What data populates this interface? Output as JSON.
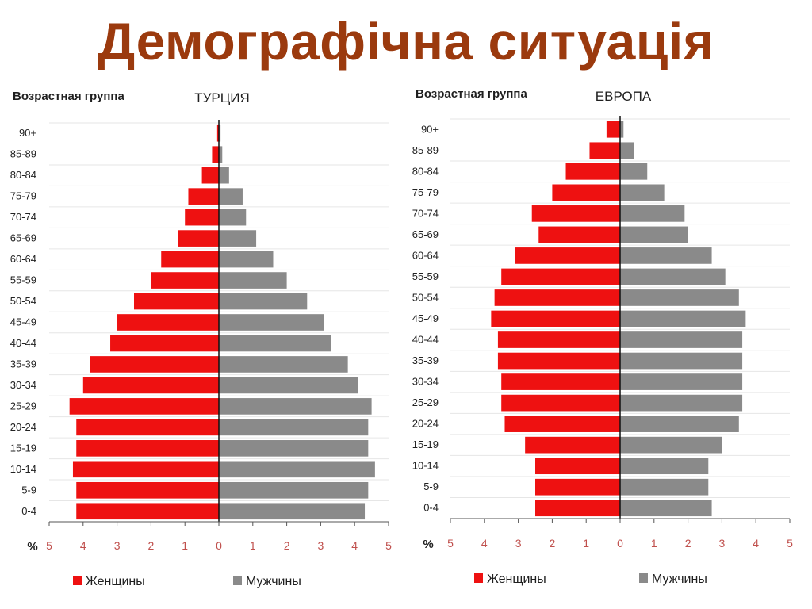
{
  "slide": {
    "title": "Демографічна ситуація"
  },
  "colors": {
    "female": "#ee1111",
    "male": "#8a8a8a",
    "tick_label": "#c0504d",
    "title": "#9b3a0e"
  },
  "chart_data": [
    {
      "type": "bar",
      "title": "ТУРЦИЯ",
      "ylabel": "Возрастная группа",
      "xlabel": "%",
      "xlim": [
        -5,
        5
      ],
      "xticks": [
        "5",
        "4",
        "3",
        "2",
        "1",
        "0",
        "1",
        "2",
        "3",
        "4",
        "5"
      ],
      "grid": true,
      "legend_position": "bottom",
      "categories": [
        "0-4",
        "5-9",
        "10-14",
        "15-19",
        "20-24",
        "25-29",
        "30-34",
        "35-39",
        "40-44",
        "45-49",
        "50-54",
        "55-59",
        "60-64",
        "65-69",
        "70-74",
        "75-79",
        "80-84",
        "85-89",
        "90+"
      ],
      "series": [
        {
          "name": "Женщины",
          "values": [
            4.2,
            4.2,
            4.3,
            4.2,
            4.2,
            4.4,
            4.0,
            3.8,
            3.2,
            3.0,
            2.5,
            2.0,
            1.7,
            1.2,
            1.0,
            0.9,
            0.5,
            0.2,
            0.05
          ]
        },
        {
          "name": "Мужчины",
          "values": [
            4.3,
            4.4,
            4.6,
            4.4,
            4.4,
            4.5,
            4.1,
            3.8,
            3.3,
            3.1,
            2.6,
            2.0,
            1.6,
            1.1,
            0.8,
            0.7,
            0.3,
            0.1,
            0.05
          ]
        }
      ]
    },
    {
      "type": "bar",
      "title": "ЕВРОПА",
      "ylabel": "Возрастная группа",
      "xlabel": "%",
      "xlim": [
        -5,
        5
      ],
      "xticks": [
        "5",
        "4",
        "3",
        "2",
        "1",
        "0",
        "1",
        "2",
        "3",
        "4",
        "5"
      ],
      "grid": true,
      "legend_position": "bottom",
      "categories": [
        "0-4",
        "5-9",
        "10-14",
        "15-19",
        "20-24",
        "25-29",
        "30-34",
        "35-39",
        "40-44",
        "45-49",
        "50-54",
        "55-59",
        "60-64",
        "65-69",
        "70-74",
        "75-79",
        "80-84",
        "85-89",
        "90+"
      ],
      "series": [
        {
          "name": "Женщины",
          "values": [
            2.5,
            2.5,
            2.5,
            2.8,
            3.4,
            3.5,
            3.5,
            3.6,
            3.6,
            3.8,
            3.7,
            3.5,
            3.1,
            2.4,
            2.6,
            2.0,
            1.6,
            0.9,
            0.4
          ]
        },
        {
          "name": "Мужчины",
          "values": [
            2.7,
            2.6,
            2.6,
            3.0,
            3.5,
            3.6,
            3.6,
            3.6,
            3.6,
            3.7,
            3.5,
            3.1,
            2.7,
            2.0,
            1.9,
            1.3,
            0.8,
            0.4,
            0.1
          ]
        }
      ]
    }
  ]
}
